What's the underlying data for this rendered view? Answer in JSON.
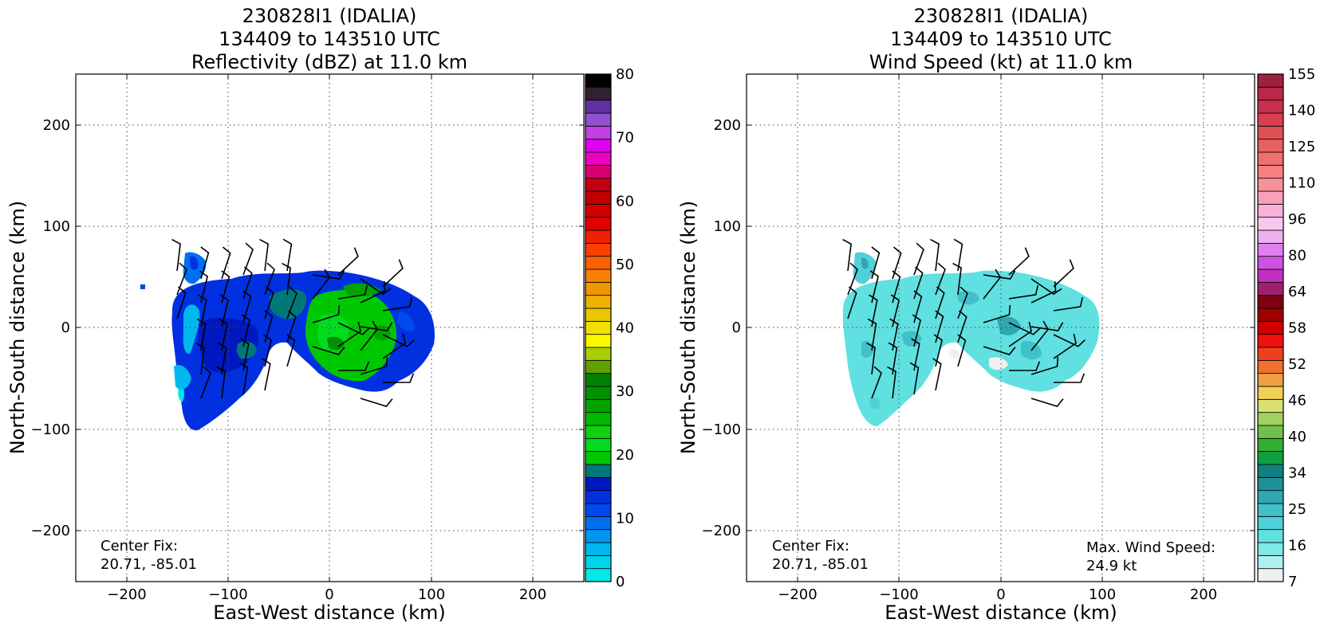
{
  "panels": [
    {
      "id": "reflectivity",
      "title_lines": [
        "230828I1 (IDALIA)",
        "134409 to 143510 UTC",
        "Reflectivity (dBZ) at 11.0 km"
      ],
      "xlabel": "East-West distance (km)",
      "ylabel": "North-South distance (km)",
      "xticks": [
        "−200",
        "−100",
        "0",
        "100",
        "200"
      ],
      "yticks": [
        "200",
        "100",
        "0",
        "−100",
        "−200"
      ],
      "center_fix_label": "Center Fix:",
      "center_fix_value": "20.71, -85.01",
      "max_wind_label": "",
      "max_wind_value": "",
      "colorbar": {
        "tick_labels": [
          "80",
          "70",
          "60",
          "50",
          "40",
          "30",
          "20",
          "10",
          "0"
        ],
        "colors": [
          "#00e8e8",
          "#00d4e8",
          "#00b8ee",
          "#0096f0",
          "#0070f0",
          "#0048f0",
          "#0030e0",
          "#0018c0",
          "#007878",
          "#00c800",
          "#00dc20",
          "#10d010",
          "#00b800",
          "#00a400",
          "#009000",
          "#008000",
          "#60a000",
          "#a8d000",
          "#f8f800",
          "#f0e000",
          "#e8c800",
          "#f0b000",
          "#f09800",
          "#f88000",
          "#f86000",
          "#f84000",
          "#f02000",
          "#e00000",
          "#d00000",
          "#c00000",
          "#c00010",
          "#d80070",
          "#f000c0",
          "#e000f0",
          "#c040e0",
          "#9050d0",
          "#6030a0",
          "#302030",
          "#000000"
        ]
      }
    },
    {
      "id": "windspeed",
      "title_lines": [
        "230828I1 (IDALIA)",
        "134409 to 143510 UTC",
        "Wind Speed (kt) at 11.0 km"
      ],
      "xlabel": "East-West distance (km)",
      "ylabel": "North-South distance (km)",
      "xticks": [
        "−200",
        "−100",
        "0",
        "100",
        "200"
      ],
      "yticks": [
        "200",
        "100",
        "0",
        "−100",
        "−200"
      ],
      "center_fix_label": "Center Fix:",
      "center_fix_value": "20.71, -85.01",
      "max_wind_label": "Max. Wind Speed:",
      "max_wind_value": "24.9 kt",
      "colorbar": {
        "tick_labels": [
          "155",
          "140",
          "125",
          "110",
          "96",
          "80",
          "64",
          "58",
          "52",
          "46",
          "40",
          "34",
          "25",
          "16",
          "7"
        ],
        "colors": [
          "#f0f0f0",
          "#b0f0f0",
          "#80e8e8",
          "#60e0e0",
          "#50d0d8",
          "#40c0c8",
          "#30a8b0",
          "#209098",
          "#108080",
          "#10a040",
          "#30b030",
          "#70c050",
          "#a0d060",
          "#d8e070",
          "#f0d050",
          "#f0a040",
          "#f07030",
          "#f04020",
          "#f01010",
          "#d00000",
          "#a00000",
          "#800010",
          "#a02070",
          "#c030c0",
          "#d050e0",
          "#e080f0",
          "#f0b0f0",
          "#f8c8f0",
          "#f8b0d8",
          "#f8a0b8",
          "#f89098",
          "#f88080",
          "#f07070",
          "#e86060",
          "#e05050",
          "#d84050",
          "#c83050",
          "#b82848",
          "#a02040"
        ]
      }
    }
  ],
  "chart_data": [
    {
      "type": "heatmap",
      "title": "230828I1 (IDALIA) 134409 to 143510 UTC Reflectivity (dBZ) at 11.0 km",
      "xlabel": "East-West distance (km)",
      "ylabel": "North-South distance (km)",
      "xlim": [
        -250,
        250
      ],
      "ylim": [
        -250,
        250
      ],
      "grid": true,
      "colorbar_range": [
        0,
        80
      ],
      "center_fix": [
        20.71,
        -85.01
      ],
      "regions": [
        {
          "name": "main echo",
          "extent_x": [
            -150,
            105
          ],
          "extent_y": [
            -100,
            55
          ],
          "max_dbz": 25
        },
        {
          "name": "northwest fragment",
          "extent_x": [
            -145,
            -115
          ],
          "extent_y": [
            38,
            72
          ],
          "max_dbz": 10
        }
      ]
    },
    {
      "type": "heatmap",
      "title": "230828I1 (IDALIA) 134409 to 143510 UTC Wind Speed (kt) at 11.0 km",
      "xlabel": "East-West distance (km)",
      "ylabel": "North-South distance (km)",
      "xlim": [
        -250,
        250
      ],
      "ylim": [
        -250,
        250
      ],
      "grid": true,
      "colorbar_range": [
        7,
        155
      ],
      "center_fix": [
        20.71,
        -85.01
      ],
      "max_wind_speed_kt": 24.9
    }
  ]
}
